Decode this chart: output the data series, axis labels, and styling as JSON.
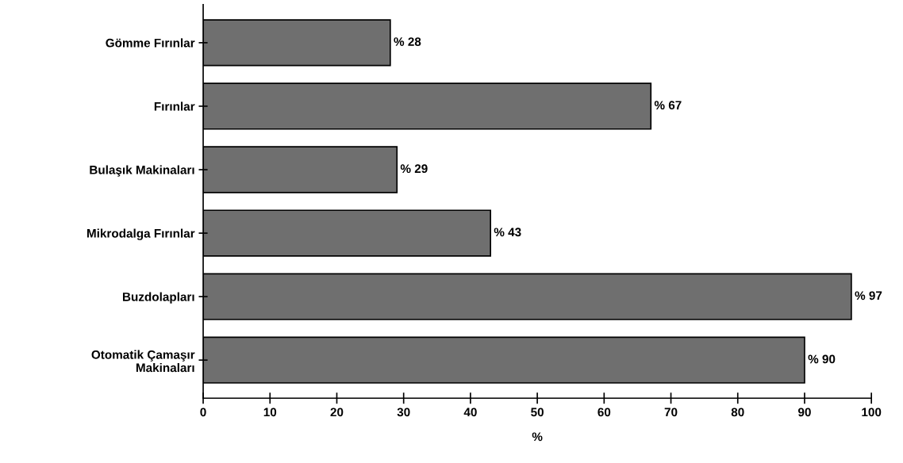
{
  "chart_data": {
    "type": "bar",
    "orientation": "horizontal",
    "xlabel": "%",
    "categories": [
      "Gömme Fırınlar",
      "Fırınlar",
      "Bulaşık Makinaları",
      "Mikrodalga Fırınlar",
      "Buzdolapları",
      "Otomatik Çamaşır\nMakinaları"
    ],
    "values": [
      28,
      67,
      29,
      43,
      97,
      90
    ],
    "value_labels": [
      "% 28",
      "% 67",
      "% 29",
      "% 43",
      "% 97",
      "% 90"
    ],
    "color": "#6f6f6f",
    "xlim": [
      0,
      100
    ],
    "xticks": [
      0,
      10,
      20,
      30,
      40,
      50,
      60,
      70,
      80,
      90,
      100
    ],
    "grid": false,
    "legend": false
  }
}
